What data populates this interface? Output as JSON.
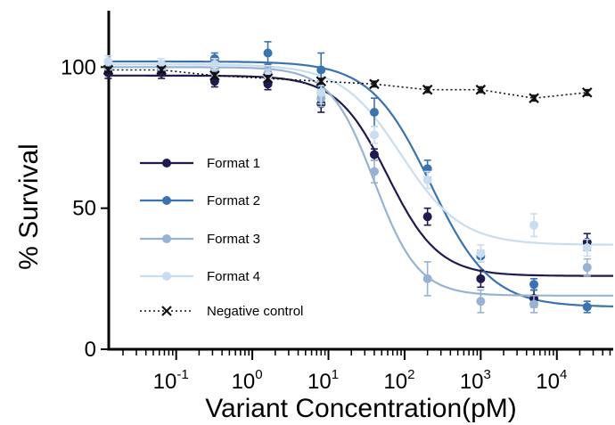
{
  "chart_data": {
    "type": "scatter",
    "xlabel": "Variant Concentration(pM)",
    "ylabel": "% Survival",
    "x_scale": "log",
    "xlim": [
      0.013,
      55000
    ],
    "ylim": [
      0,
      120
    ],
    "x_ticks": [
      {
        "value": 0.1,
        "base": "10",
        "exp": "-1"
      },
      {
        "value": 1,
        "base": "10",
        "exp": "0"
      },
      {
        "value": 10,
        "base": "10",
        "exp": "1"
      },
      {
        "value": 100,
        "base": "10",
        "exp": "2"
      },
      {
        "value": 1000,
        "base": "10",
        "exp": "3"
      },
      {
        "value": 10000,
        "base": "10",
        "exp": "4"
      }
    ],
    "y_ticks": [
      {
        "value": 0,
        "label": "0"
      },
      {
        "value": 50,
        "label": "50"
      },
      {
        "value": 100,
        "label": "100"
      }
    ],
    "x": [
      0.0128,
      0.064,
      0.32,
      1.6,
      8,
      40,
      200,
      1000,
      5000,
      25000
    ],
    "legend_position": "center-left",
    "series": [
      {
        "name": "Format 1",
        "color": "#1f1a4f",
        "marker": "circle",
        "line": "solid",
        "values": [
          98,
          98,
          95,
          94,
          87,
          69,
          47,
          25,
          18,
          38
        ],
        "errors": [
          2,
          2,
          2,
          2,
          3,
          2,
          3,
          3,
          3,
          3
        ],
        "fit": {
          "top": 97,
          "bottom": 26,
          "ec50": 60,
          "hill": 1.3
        }
      },
      {
        "name": "Format 2",
        "color": "#3b72b0",
        "marker": "circle",
        "line": "solid",
        "values": [
          100,
          100,
          103,
          105,
          99,
          84,
          64,
          33,
          23,
          15
        ],
        "errors": [
          2,
          2,
          2,
          4,
          6,
          5,
          3,
          2,
          2,
          2
        ],
        "fit": {
          "top": 102,
          "bottom": 15,
          "ec50": 220,
          "hill": 1.1
        }
      },
      {
        "name": "Format 3",
        "color": "#97b2d2",
        "marker": "circle",
        "line": "solid",
        "values": [
          100,
          100,
          99,
          98,
          89,
          63,
          25,
          17,
          16,
          29
        ],
        "errors": [
          2,
          2,
          2,
          2,
          3,
          4,
          6,
          4,
          3,
          3
        ],
        "fit": {
          "top": 100,
          "bottom": 19,
          "ec50": 40,
          "hill": 1.5
        }
      },
      {
        "name": "Format 4",
        "color": "#c9ddf0",
        "marker": "circle",
        "line": "solid",
        "values": [
          102,
          101,
          101,
          97,
          91,
          76,
          60,
          34,
          44,
          36
        ],
        "errors": [
          2,
          2,
          2,
          2,
          4,
          3,
          3,
          3,
          4,
          3
        ],
        "fit": {
          "top": 101,
          "bottom": 37,
          "ec50": 90,
          "hill": 1.1
        }
      },
      {
        "name": "Negative control",
        "color": "#111111",
        "marker": "x",
        "line": "dotted",
        "values": [
          99,
          99,
          97,
          96,
          95,
          94,
          92,
          92,
          89,
          91
        ],
        "errors": [
          1,
          1,
          1,
          1,
          1,
          1,
          1,
          1,
          1,
          1
        ]
      }
    ]
  }
}
